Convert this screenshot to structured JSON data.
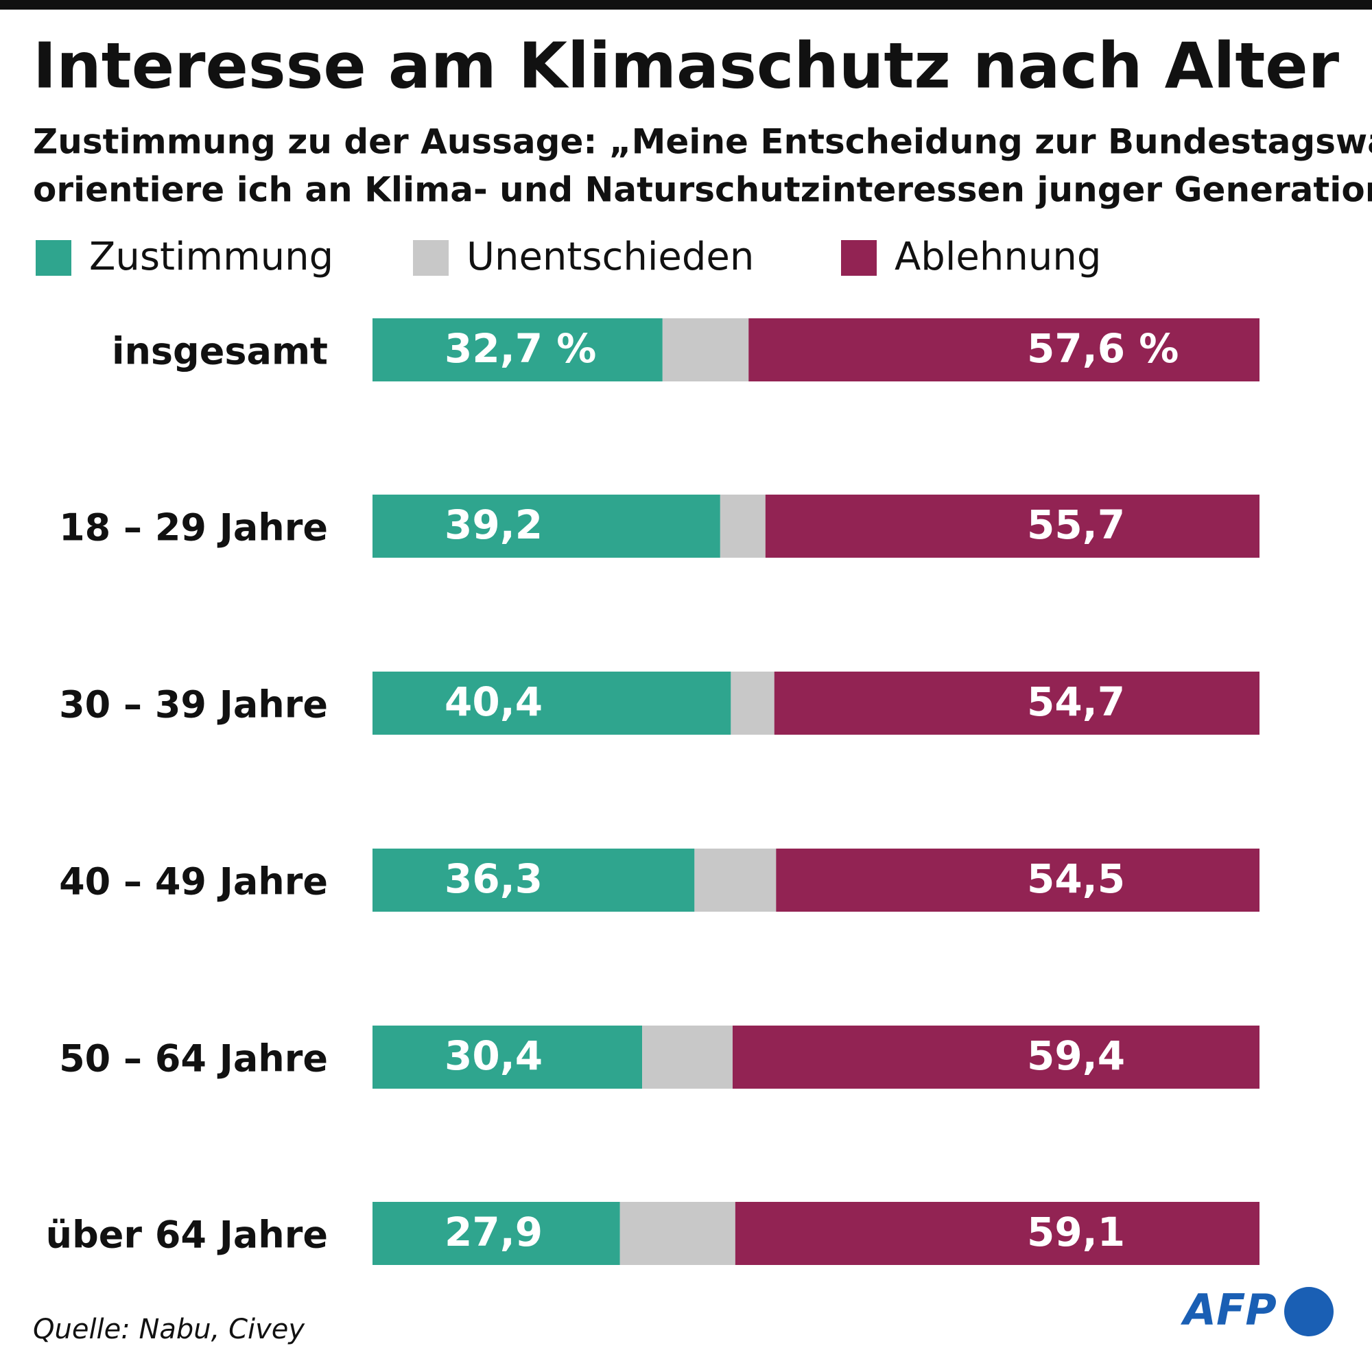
{
  "chart_data": {
    "type": "stacked-bar-horizontal",
    "title": "Interesse am Klimaschutz nach Alter",
    "subtitle": [
      "Zustimmung zu der Aussage: „Meine Entscheidung zur Bundestagswahl",
      "orientiere ich an Klima- und Naturschutzinteressen junger Generationen“"
    ],
    "categories": [
      "insgesamt",
      "18 – 29 Jahre",
      "30 – 39 Jahre",
      "40 – 49 Jahre",
      "50 – 64 Jahre",
      "über 64 Jahre"
    ],
    "series": [
      {
        "name": "Zustimmung",
        "color": "#2fa58e",
        "values": [
          32.7,
          39.2,
          40.4,
          36.3,
          30.4,
          27.9
        ],
        "value_labels": [
          "32,7 %",
          "39,2",
          "40,4",
          "36,3",
          "30,4",
          "27,9"
        ]
      },
      {
        "name": "Unentschieden",
        "color": "#c8c8c8",
        "values": [
          9.7,
          5.1,
          4.9,
          9.2,
          10.2,
          13.0
        ]
      },
      {
        "name": "Ablehnung",
        "color": "#922353",
        "values": [
          57.6,
          55.7,
          54.7,
          54.5,
          59.4,
          59.1
        ],
        "value_labels": [
          "57,6 %",
          "55,7",
          "54,7",
          "54,5",
          "59,4",
          "59,1"
        ]
      }
    ],
    "source": "Quelle: Nabu, Civey",
    "logo": "AFP"
  }
}
